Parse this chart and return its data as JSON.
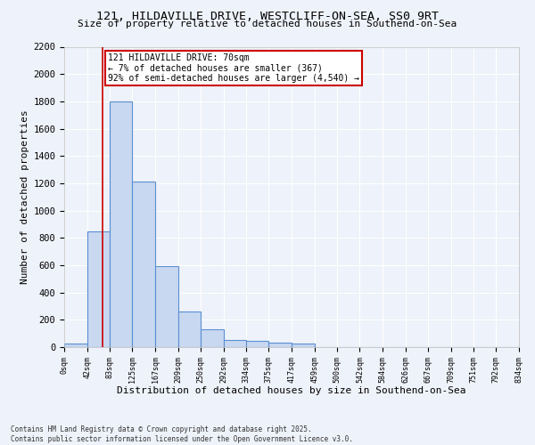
{
  "title_line1": "121, HILDAVILLE DRIVE, WESTCLIFF-ON-SEA, SS0 9RT",
  "title_line2": "Size of property relative to detached houses in Southend-on-Sea",
  "xlabel": "Distribution of detached houses by size in Southend-on-Sea",
  "ylabel": "Number of detached properties",
  "footer_line1": "Contains HM Land Registry data © Crown copyright and database right 2025.",
  "footer_line2": "Contains public sector information licensed under the Open Government Licence v3.0.",
  "bin_edges": [
    0,
    42,
    83,
    125,
    167,
    209,
    250,
    292,
    334,
    375,
    417,
    459,
    500,
    542,
    584,
    626,
    667,
    709,
    751,
    792,
    834
  ],
  "bar_heights": [
    25,
    845,
    1800,
    1210,
    590,
    260,
    130,
    50,
    45,
    35,
    25,
    0,
    0,
    0,
    0,
    0,
    0,
    0,
    0,
    0
  ],
  "bar_color": "#c8d8f0",
  "bar_edge_color": "#5b8fd4",
  "bg_color": "#eef2fa",
  "grid_color": "#ffffff",
  "vline_x": 70,
  "vline_color": "#cc0000",
  "annotation_text": "121 HILDAVILLE DRIVE: 70sqm\n← 7% of detached houses are smaller (367)\n92% of semi-detached houses are larger (4,540) →",
  "annotation_box_color": "#cc0000",
  "annotation_text_color": "#000000",
  "ylim": [
    0,
    2200
  ],
  "xlim": [
    0,
    834
  ],
  "yticks": [
    0,
    200,
    400,
    600,
    800,
    1000,
    1200,
    1400,
    1600,
    1800,
    2000,
    2200
  ]
}
